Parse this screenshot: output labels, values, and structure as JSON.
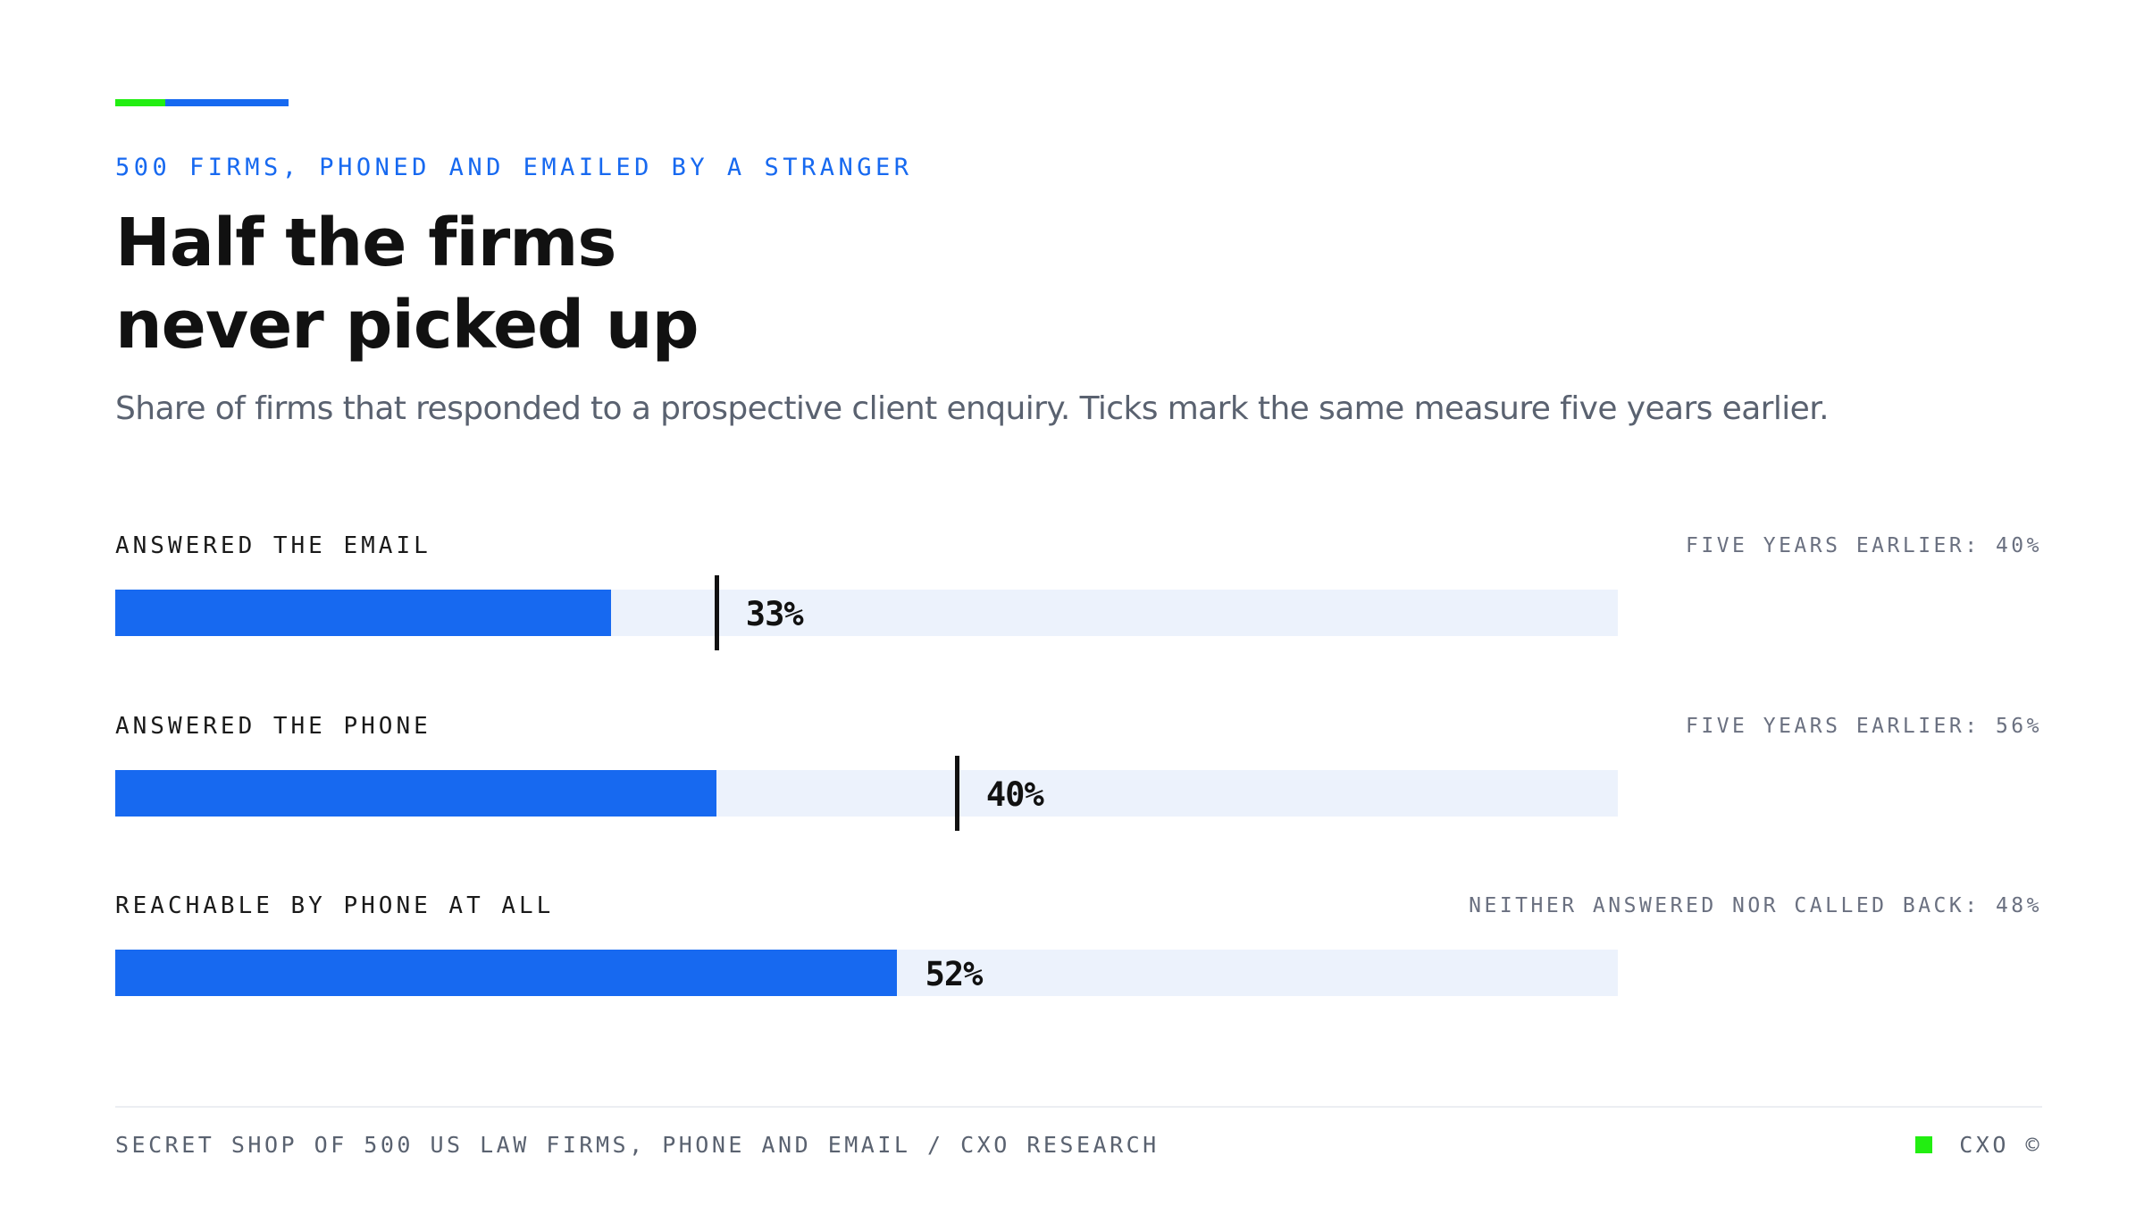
{
  "colors": {
    "accent_green": "#22ee11",
    "accent_blue": "#1769f0",
    "bar_fill": "#1769f0",
    "bar_track": "#ecf2fc",
    "tick": "#111111",
    "eyebrow": "#1769f0"
  },
  "header": {
    "eyebrow": "500 FIRMS, PHONED AND EMAILED BY A STRANGER",
    "title_line1": "Half the firms",
    "title_line2": "never picked up",
    "subtitle": "Share of firms that responded to a prospective client enquiry. Ticks mark the same measure five years earlier."
  },
  "chart_data": {
    "type": "bar",
    "orientation": "horizontal",
    "xlim": [
      0,
      100
    ],
    "unit": "%",
    "categories": [
      "ANSWERED THE EMAIL",
      "ANSWERED THE PHONE",
      "REACHABLE BY PHONE AT ALL"
    ],
    "values": [
      33,
      40,
      52
    ],
    "value_labels": [
      "33%",
      "40%",
      "52%"
    ],
    "reference_ticks": [
      40,
      56,
      null
    ],
    "notes": [
      "FIVE YEARS EARLIER: 40%",
      "FIVE YEARS EARLIER: 56%",
      "NEITHER ANSWERED NOR CALLED BACK: 48%"
    ]
  },
  "footer": {
    "source": "SECRET SHOP OF 500 US LAW FIRMS, PHONE AND EMAIL / CXO RESEARCH",
    "brand": "CXO ©",
    "brand_square_color": "#22ee11"
  }
}
